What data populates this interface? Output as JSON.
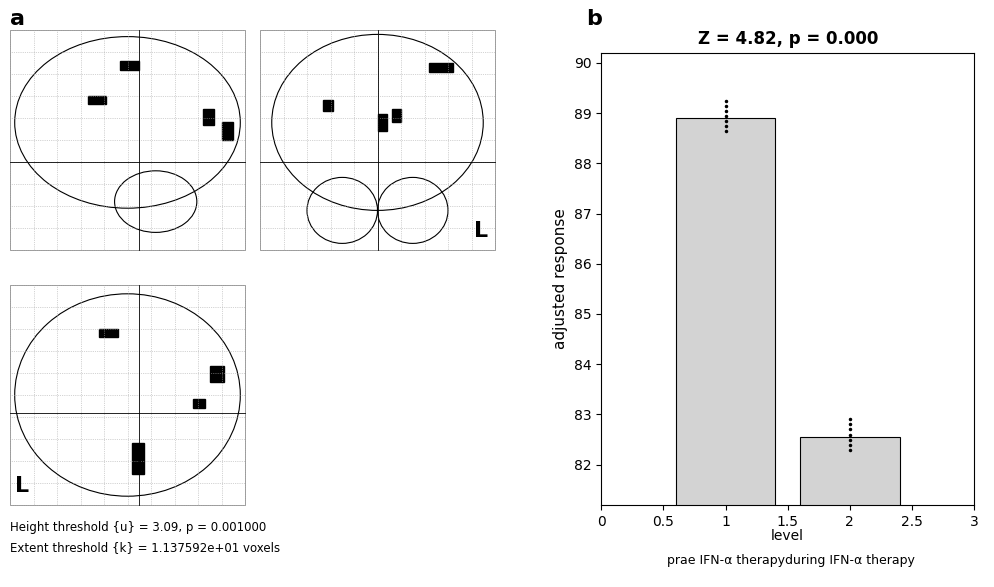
{
  "panel_a": {
    "label": "a",
    "orientation_label": "L",
    "notes": [
      "Height threshold {u} = 3.09, p = 0.001000",
      "Extent threshold {k} = 1.137592e+01 voxels"
    ]
  },
  "chart_data": {
    "type": "bar",
    "label": "b",
    "title": "Z = 4.82, p = 0.000",
    "x_label": "level",
    "y_label": "adjusted response",
    "x": [
      1,
      2
    ],
    "values": [
      88.9,
      82.55
    ],
    "points": [
      [
        89.25,
        89.15,
        89.05,
        88.95,
        88.85,
        88.75,
        88.65
      ],
      [
        82.9,
        82.8,
        82.7,
        82.6,
        82.5,
        82.4,
        82.3
      ]
    ],
    "annotations": [
      {
        "text": "prae IFN-α therapy",
        "x": 1
      },
      {
        "text": "during IFN-α therapy",
        "x": 2
      }
    ],
    "color": "#d3d3d3",
    "xlim": [
      0,
      3
    ],
    "xticks": [
      0,
      0.5,
      1,
      1.5,
      2,
      2.5,
      3
    ],
    "ylim": [
      81.2,
      90.2
    ],
    "yticks": [
      82,
      83,
      84,
      85,
      86,
      87,
      88,
      89,
      90
    ]
  }
}
